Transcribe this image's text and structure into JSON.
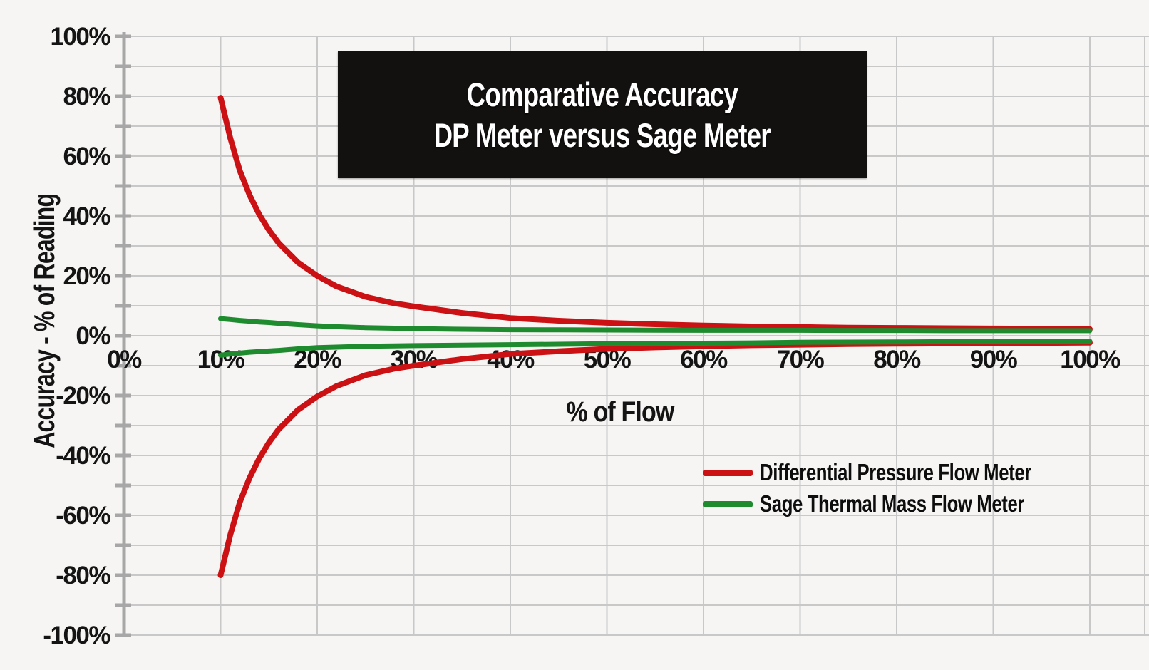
{
  "title": {
    "line1": "Comparative Accuracy",
    "line2": "DP Meter versus Sage Meter"
  },
  "axes": {
    "y_title": "Accuracy - % of Reading",
    "x_title": "% of Flow"
  },
  "legend": [
    {
      "label": "Differential Pressure Flow Meter",
      "color": "#cc1115"
    },
    {
      "label": "Sage Thermal Mass Flow Meter",
      "color": "#1e8b2e"
    }
  ],
  "colors": {
    "background": "#f6f5f3",
    "grid": "#c8c8c8",
    "axis": "#a7a7a7",
    "text": "#141414",
    "title_box_bg": "#131110",
    "title_text": "#ffffff"
  },
  "chart_data": {
    "type": "line",
    "title": "Comparative Accuracy DP Meter versus Sage Meter",
    "xlabel": "% of Flow",
    "ylabel": "Accuracy - % of Reading",
    "xlim": [
      0,
      100
    ],
    "ylim": [
      -100,
      100
    ],
    "grid": true,
    "grid_step_percent": 10,
    "x_tick_labels": [
      "0%",
      "10%",
      "20%",
      "30%",
      "40%",
      "50%",
      "60%",
      "70%",
      "80%",
      "90%",
      "100%"
    ],
    "x_tick_values": [
      0,
      10,
      20,
      30,
      40,
      50,
      60,
      70,
      80,
      90,
      100
    ],
    "y_tick_labels": [
      "100%",
      "80%",
      "60%",
      "40%",
      "20%",
      "0%",
      "-20%",
      "-40%",
      "-60%",
      "-80%",
      "-100%"
    ],
    "y_tick_values": [
      100,
      80,
      60,
      40,
      20,
      0,
      -20,
      -40,
      -60,
      -80,
      -100
    ],
    "y_minor_tick_step": 10,
    "legend_position": "lower right",
    "x": [
      10,
      11,
      12,
      13,
      14,
      15,
      16,
      18,
      20,
      22,
      25,
      28,
      30,
      35,
      40,
      45,
      50,
      55,
      60,
      65,
      70,
      75,
      80,
      85,
      90,
      95,
      100
    ],
    "series": [
      {
        "name": "Differential Pressure Flow Meter",
        "branch": "upper",
        "color": "#cc1115",
        "values": [
          79.5,
          66,
          55,
          47,
          40.5,
          35.3,
          31,
          24.5,
          20,
          16.5,
          13,
          10.8,
          9.8,
          7.6,
          5.9,
          5.0,
          4.3,
          3.8,
          3.4,
          3.1,
          2.9,
          2.7,
          2.6,
          2.5,
          2.4,
          2.3,
          2.2
        ]
      },
      {
        "name": "Differential Pressure Flow Meter",
        "branch": "lower",
        "color": "#cc1115",
        "values": [
          -80,
          -66.5,
          -55.5,
          -47.5,
          -41,
          -35.7,
          -31.3,
          -24.8,
          -20.3,
          -16.8,
          -13.2,
          -11,
          -10,
          -7.8,
          -6.1,
          -5.2,
          -4.4,
          -3.9,
          -3.5,
          -3.2,
          -3.0,
          -2.8,
          -2.7,
          -2.6,
          -2.5,
          -2.4,
          -2.3
        ]
      },
      {
        "name": "Sage Thermal Mass Flow Meter",
        "branch": "upper",
        "color": "#1e8b2e",
        "values": [
          5.7,
          5.4,
          5.1,
          4.85,
          4.6,
          4.4,
          4.15,
          3.7,
          3.3,
          3.0,
          2.7,
          2.5,
          2.35,
          2.15,
          2.0,
          1.95,
          1.9,
          1.85,
          1.8,
          1.8,
          1.8,
          1.75,
          1.75,
          1.7,
          1.7,
          1.7,
          1.7
        ]
      },
      {
        "name": "Sage Thermal Mass Flow Meter",
        "branch": "lower",
        "color": "#1e8b2e",
        "values": [
          -6.5,
          -6.1,
          -5.8,
          -5.5,
          -5.3,
          -5.1,
          -4.9,
          -4.4,
          -4.0,
          -3.8,
          -3.5,
          -3.4,
          -3.3,
          -3.15,
          -3.0,
          -2.85,
          -2.7,
          -2.6,
          -2.5,
          -2.4,
          -2.2,
          -2.15,
          -2.1,
          -2.0,
          -1.95,
          -1.9,
          -1.85
        ]
      }
    ]
  }
}
